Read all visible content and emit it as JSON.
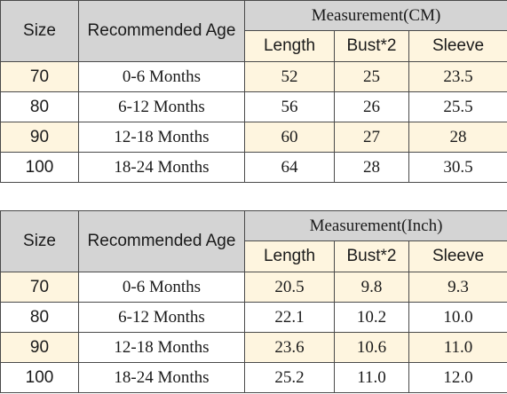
{
  "tables": [
    {
      "headers": {
        "size": "Size",
        "age": "Recommended Age",
        "group": "Measurement(CM)",
        "length": "Length",
        "bust": "Bust*2",
        "sleeve": "Sleeve"
      },
      "rows": [
        {
          "size": "70",
          "age": "0-6 Months",
          "length": "52",
          "bust": "25",
          "sleeve": "23.5"
        },
        {
          "size": "80",
          "age": "6-12 Months",
          "length": "56",
          "bust": "26",
          "sleeve": "25.5"
        },
        {
          "size": "90",
          "age": "12-18 Months",
          "length": "60",
          "bust": "27",
          "sleeve": "28"
        },
        {
          "size": "100",
          "age": "18-24 Months",
          "length": "64",
          "bust": "28",
          "sleeve": "30.5"
        }
      ]
    },
    {
      "headers": {
        "size": "Size",
        "age": "Recommended Age",
        "group": "Measurement(Inch)",
        "length": "Length",
        "bust": "Bust*2",
        "sleeve": "Sleeve"
      },
      "rows": [
        {
          "size": "70",
          "age": "0-6 Months",
          "length": "20.5",
          "bust": "9.8",
          "sleeve": "9.3"
        },
        {
          "size": "80",
          "age": "6-12 Months",
          "length": "22.1",
          "bust": "10.2",
          "sleeve": "10.0"
        },
        {
          "size": "90",
          "age": "12-18 Months",
          "length": "23.6",
          "bust": "10.6",
          "sleeve": "11.0"
        },
        {
          "size": "100",
          "age": "18-24 Months",
          "length": "25.2",
          "bust": "11.0",
          "sleeve": "12.0"
        }
      ]
    }
  ],
  "colors": {
    "header_bg": "#d4d4d4",
    "row_highlight": "#fef5df",
    "row_plain": "#ffffff",
    "border": "#4a4a4a"
  }
}
